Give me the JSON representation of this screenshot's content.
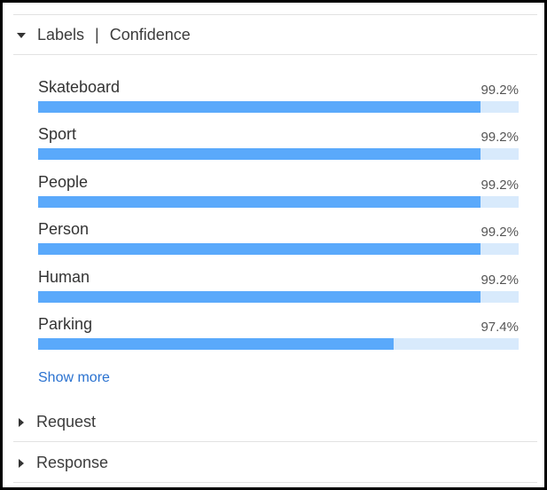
{
  "header": {
    "title_left": "Labels",
    "separator": "|",
    "title_right": "Confidence"
  },
  "labels": [
    {
      "name": "Skateboard",
      "confidence_text": "99.2%",
      "confidence": 99.2
    },
    {
      "name": "Sport",
      "confidence_text": "99.2%",
      "confidence": 99.2
    },
    {
      "name": "People",
      "confidence_text": "99.2%",
      "confidence": 99.2
    },
    {
      "name": "Person",
      "confidence_text": "99.2%",
      "confidence": 99.2
    },
    {
      "name": "Human",
      "confidence_text": "99.2%",
      "confidence": 99.2
    },
    {
      "name": "Parking",
      "confidence_text": "97.4%",
      "confidence": 97.4
    }
  ],
  "show_more": "Show more",
  "sections": {
    "request": "Request",
    "response": "Response"
  },
  "colors": {
    "bar_fill": "#5aa9fb",
    "bar_track": "#d8eafc",
    "link": "#2a72d0"
  }
}
